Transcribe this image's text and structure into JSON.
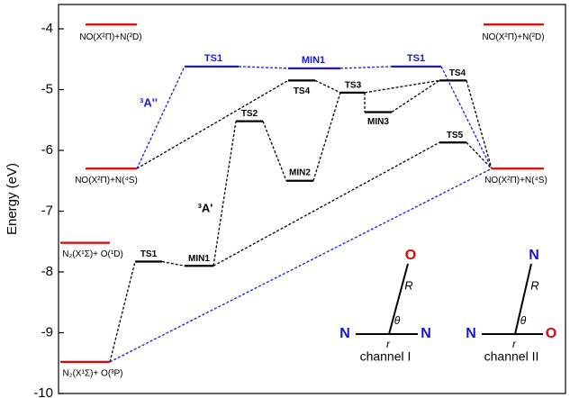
{
  "chart_data": {
    "type": "energy-diagram",
    "ylabel": "Energy (eV)",
    "ylim": [
      -10,
      -3.6
    ],
    "yticks": [
      -10,
      -9,
      -8,
      -7,
      -6,
      -5,
      -4
    ],
    "levels": [
      {
        "label": "NO(X²Π)+N(²D)",
        "energy": -3.93,
        "color": "#e60000"
      },
      {
        "label": "NO(X²Π)+N(²D)",
        "energy": -3.93,
        "color": "#e60000"
      },
      {
        "label": "NO(X²Π)+N(⁴S)",
        "energy": -6.3,
        "color": "#e60000"
      },
      {
        "label": "NO(X²Π)+N(⁴S)",
        "energy": -6.3,
        "color": "#e60000"
      },
      {
        "label": "N₂(X¹Σ)+ O(¹D)",
        "energy": -7.52,
        "color": "#e60000"
      },
      {
        "label": "N₂(X¹Σ)+ O(³P)",
        "energy": -9.48,
        "color": "#e60000"
      },
      {
        "label": "TS1",
        "energy": -7.83,
        "color": "#000000"
      },
      {
        "label": "MIN1",
        "energy": -7.9,
        "color": "#000000"
      },
      {
        "label": "TS2",
        "energy": -5.52,
        "color": "#000000"
      },
      {
        "label": "MIN2",
        "energy": -6.5,
        "color": "#000000"
      },
      {
        "label": "TS4",
        "energy": -4.85,
        "color": "#000000"
      },
      {
        "label": "TS3",
        "energy": -5.05,
        "color": "#000000"
      },
      {
        "label": "MIN3",
        "energy": -5.37,
        "color": "#000000"
      },
      {
        "label": "TS4",
        "energy": -4.85,
        "color": "#000000"
      },
      {
        "label": "TS5",
        "energy": -5.87,
        "color": "#000000"
      },
      {
        "label": "TS1",
        "energy": -4.62,
        "color": "#1a1adc"
      },
      {
        "label": "MIN1",
        "energy": -4.65,
        "color": "#1a1adc"
      },
      {
        "label": "TS1",
        "energy": -4.62,
        "color": "#1a1adc"
      }
    ],
    "annotations": [
      {
        "text": "³A''",
        "color": "#1a1adc"
      },
      {
        "text": "³A'",
        "color": "#000000"
      }
    ],
    "insets": [
      {
        "caption": "channel I",
        "left": {
          "label": "N",
          "color": "#1515d0"
        },
        "right": {
          "label": "N",
          "color": "#1515d0"
        },
        "top": {
          "label": "O",
          "color": "#e60000"
        },
        "R": "R",
        "theta": "θ",
        "r": "r"
      },
      {
        "caption": "channel II",
        "left": {
          "label": "N",
          "color": "#1515d0"
        },
        "right": {
          "label": "O",
          "color": "#e60000"
        },
        "top": {
          "label": "N",
          "color": "#1515d0"
        },
        "R": "R",
        "theta": "θ",
        "r": "r"
      }
    ]
  }
}
